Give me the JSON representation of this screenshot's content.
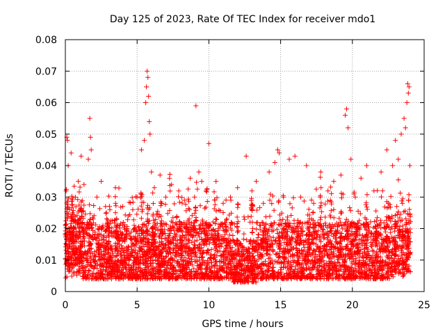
{
  "chart_data": {
    "type": "scatter",
    "title": "Day 125 of 2023, Rate Of TEC Index for receiver mdo1",
    "xlabel": "GPS time / hours",
    "ylabel": "ROTI / TECUs",
    "xlim": [
      0,
      25
    ],
    "ylim": [
      0,
      0.08
    ],
    "x_ticks": [
      "0",
      "5",
      "10",
      "15",
      "20",
      "25"
    ],
    "y_ticks": [
      "0",
      "0.01",
      "0.02",
      "0.03",
      "0.04",
      "0.05",
      "0.06",
      "0.07",
      "0.08"
    ],
    "grid": true,
    "marker": "plus",
    "color": "#ff0000",
    "series": [
      {
        "x": [
          0.05,
          0.1,
          0.15,
          0.2,
          0.25,
          0.3,
          0.4,
          0.5,
          0.7,
          0.9,
          1.1,
          1.3,
          1.6,
          1.7,
          1.75,
          1.8,
          2.2,
          2.5,
          2.8,
          3.1,
          3.5,
          4.0,
          4.4,
          4.7,
          5.0,
          5.3,
          5.5,
          5.6,
          5.65,
          5.7,
          5.75,
          5.8,
          5.85,
          5.9,
          6.0,
          6.2,
          6.6,
          7.0,
          7.4,
          7.9,
          8.3,
          8.7,
          9.0,
          9.1,
          9.3,
          9.5,
          9.8,
          10.0,
          10.5,
          11.0,
          11.5,
          12.0,
          12.6,
          13.0,
          13.3,
          13.8,
          14.2,
          14.6,
          14.8,
          14.9,
          15.2,
          15.6,
          16.0,
          16.4,
          16.8,
          17.3,
          17.8,
          18.3,
          18.7,
          19.2,
          19.5,
          19.6,
          19.7,
          19.9,
          20.2,
          20.6,
          21.0,
          21.5,
          22.0,
          22.4,
          22.8,
          23.0,
          23.2,
          23.4,
          23.6,
          23.7,
          23.8,
          23.85,
          23.9,
          23.95,
          24.0
        ],
        "y": [
          0.032,
          0.049,
          0.048,
          0.04,
          0.02,
          0.015,
          0.044,
          0.025,
          0.03,
          0.035,
          0.043,
          0.034,
          0.042,
          0.055,
          0.049,
          0.045,
          0.03,
          0.035,
          0.027,
          0.026,
          0.028,
          0.027,
          0.024,
          0.026,
          0.03,
          0.045,
          0.048,
          0.06,
          0.065,
          0.07,
          0.068,
          0.062,
          0.054,
          0.05,
          0.038,
          0.033,
          0.037,
          0.03,
          0.034,
          0.032,
          0.029,
          0.036,
          0.03,
          0.059,
          0.038,
          0.035,
          0.032,
          0.047,
          0.035,
          0.028,
          0.03,
          0.033,
          0.043,
          0.032,
          0.035,
          0.028,
          0.038,
          0.041,
          0.045,
          0.044,
          0.03,
          0.042,
          0.043,
          0.03,
          0.04,
          0.028,
          0.038,
          0.032,
          0.035,
          0.037,
          0.056,
          0.058,
          0.052,
          0.042,
          0.03,
          0.036,
          0.04,
          0.032,
          0.038,
          0.045,
          0.04,
          0.048,
          0.042,
          0.05,
          0.055,
          0.052,
          0.06,
          0.066,
          0.063,
          0.065,
          0.04
        ]
      },
      {
        "name": "",
        "x": [],
        "y": []
      }
    ]
  }
}
